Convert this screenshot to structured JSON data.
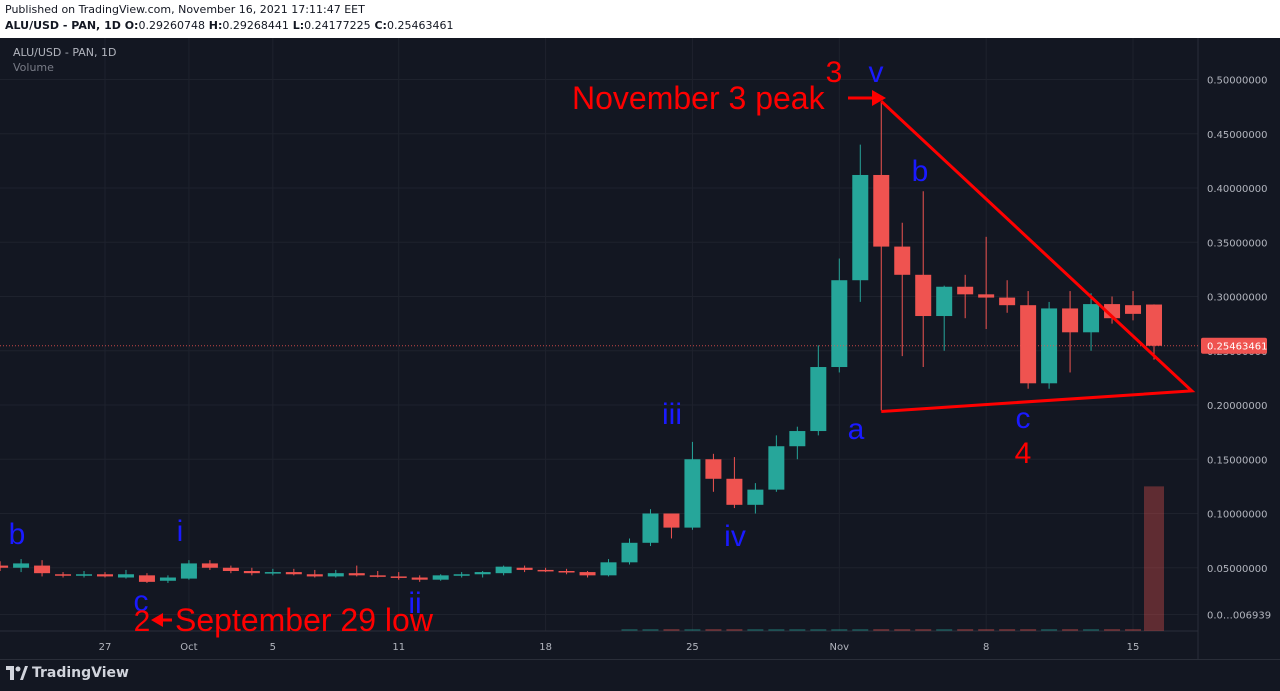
{
  "header": {
    "published": "Published on TradingView.com, November 16, 2021 17:11:47 EET",
    "symbol_line": "ALU/USD - PAN, 1D",
    "ohlc": {
      "o_label": "O:",
      "o": "0.29260748",
      "h_label": "H:",
      "h": "0.29268441",
      "l_label": "L:",
      "l": "0.24177225",
      "c_label": "C:",
      "c": "0.25463461"
    }
  },
  "legend": {
    "symbol": "ALU/USD - PAN, 1D",
    "volume": "Volume"
  },
  "footer": {
    "brand": "TradingView"
  },
  "colors": {
    "up": "#26a69a",
    "down": "#ef5350",
    "annotation_red": "#ff0000",
    "annotation_blue": "#1a1aff",
    "background": "#131722",
    "grid": "#1e222d",
    "axis_text": "#b2b5be"
  },
  "chart_data": {
    "type": "candlestick",
    "ylim": [
      0,
      0.53
    ],
    "y_ticks": [
      {
        "value": 0.5,
        "label": "0.50000000"
      },
      {
        "value": 0.45,
        "label": "0.45000000"
      },
      {
        "value": 0.4,
        "label": "0.40000000"
      },
      {
        "value": 0.35,
        "label": "0.35000000"
      },
      {
        "value": 0.3,
        "label": "0.30000000"
      },
      {
        "value": 0.25,
        "label": "0.25000000"
      },
      {
        "value": 0.2,
        "label": "0.20000000"
      },
      {
        "value": 0.15,
        "label": "0.15000000"
      },
      {
        "value": 0.1,
        "label": "0.10000000"
      },
      {
        "value": 0.05,
        "label": "0.05000000"
      },
      {
        "value": 0.006939,
        "label": "0.0…006939"
      }
    ],
    "x_ticks": [
      {
        "day": 27,
        "label": "27"
      },
      {
        "day": 31,
        "label": "Oct"
      },
      {
        "day": 35,
        "label": "5"
      },
      {
        "day": 41,
        "label": "11"
      },
      {
        "day": 48,
        "label": "18"
      },
      {
        "day": 55,
        "label": "25"
      },
      {
        "day": 62,
        "label": "Nov"
      },
      {
        "day": 69,
        "label": "8"
      },
      {
        "day": 76,
        "label": "15"
      }
    ],
    "last_price": {
      "value": 0.25463461,
      "label": "0.25463461"
    },
    "candles": [
      {
        "day": 22,
        "o": 0.052,
        "h": 0.056,
        "l": 0.047,
        "c": 0.05
      },
      {
        "day": 23,
        "o": 0.05,
        "h": 0.058,
        "l": 0.046,
        "c": 0.054
      },
      {
        "day": 24,
        "o": 0.052,
        "h": 0.057,
        "l": 0.042,
        "c": 0.045
      },
      {
        "day": 25,
        "o": 0.044,
        "h": 0.046,
        "l": 0.041,
        "c": 0.043
      },
      {
        "day": 26,
        "o": 0.043,
        "h": 0.047,
        "l": 0.041,
        "c": 0.044
      },
      {
        "day": 27,
        "o": 0.044,
        "h": 0.046,
        "l": 0.041,
        "c": 0.042
      },
      {
        "day": 28,
        "o": 0.041,
        "h": 0.048,
        "l": 0.04,
        "c": 0.044
      },
      {
        "day": 29,
        "o": 0.043,
        "h": 0.045,
        "l": 0.036,
        "c": 0.037
      },
      {
        "day": 30,
        "o": 0.038,
        "h": 0.043,
        "l": 0.036,
        "c": 0.041
      },
      {
        "day": 31,
        "o": 0.04,
        "h": 0.057,
        "l": 0.039,
        "c": 0.054
      },
      {
        "day": 32,
        "o": 0.054,
        "h": 0.057,
        "l": 0.048,
        "c": 0.05
      },
      {
        "day": 33,
        "o": 0.05,
        "h": 0.052,
        "l": 0.045,
        "c": 0.047
      },
      {
        "day": 34,
        "o": 0.047,
        "h": 0.05,
        "l": 0.043,
        "c": 0.045
      },
      {
        "day": 35,
        "o": 0.045,
        "h": 0.049,
        "l": 0.043,
        "c": 0.046
      },
      {
        "day": 36,
        "o": 0.046,
        "h": 0.049,
        "l": 0.043,
        "c": 0.044
      },
      {
        "day": 37,
        "o": 0.044,
        "h": 0.048,
        "l": 0.041,
        "c": 0.042
      },
      {
        "day": 38,
        "o": 0.042,
        "h": 0.048,
        "l": 0.041,
        "c": 0.045
      },
      {
        "day": 39,
        "o": 0.045,
        "h": 0.052,
        "l": 0.042,
        "c": 0.043
      },
      {
        "day": 40,
        "o": 0.043,
        "h": 0.047,
        "l": 0.041,
        "c": 0.042
      },
      {
        "day": 41,
        "o": 0.042,
        "h": 0.046,
        "l": 0.039,
        "c": 0.041
      },
      {
        "day": 42,
        "o": 0.041,
        "h": 0.043,
        "l": 0.037,
        "c": 0.039
      },
      {
        "day": 43,
        "o": 0.039,
        "h": 0.044,
        "l": 0.038,
        "c": 0.043
      },
      {
        "day": 44,
        "o": 0.043,
        "h": 0.046,
        "l": 0.041,
        "c": 0.044
      },
      {
        "day": 45,
        "o": 0.044,
        "h": 0.047,
        "l": 0.041,
        "c": 0.046
      },
      {
        "day": 46,
        "o": 0.045,
        "h": 0.052,
        "l": 0.043,
        "c": 0.051
      },
      {
        "day": 47,
        "o": 0.05,
        "h": 0.052,
        "l": 0.046,
        "c": 0.048
      },
      {
        "day": 48,
        "o": 0.048,
        "h": 0.05,
        "l": 0.046,
        "c": 0.047
      },
      {
        "day": 49,
        "o": 0.047,
        "h": 0.049,
        "l": 0.044,
        "c": 0.046
      },
      {
        "day": 50,
        "o": 0.046,
        "h": 0.047,
        "l": 0.041,
        "c": 0.043
      },
      {
        "day": 51,
        "o": 0.043,
        "h": 0.058,
        "l": 0.042,
        "c": 0.055
      },
      {
        "day": 52,
        "o": 0.055,
        "h": 0.077,
        "l": 0.053,
        "c": 0.073
      },
      {
        "day": 53,
        "o": 0.073,
        "h": 0.104,
        "l": 0.07,
        "c": 0.1
      },
      {
        "day": 54,
        "o": 0.1,
        "h": 0.1,
        "l": 0.077,
        "c": 0.087
      },
      {
        "day": 55,
        "o": 0.087,
        "h": 0.166,
        "l": 0.085,
        "c": 0.15
      },
      {
        "day": 56,
        "o": 0.15,
        "h": 0.155,
        "l": 0.12,
        "c": 0.132
      },
      {
        "day": 57,
        "o": 0.132,
        "h": 0.152,
        "l": 0.105,
        "c": 0.108
      },
      {
        "day": 58,
        "o": 0.108,
        "h": 0.128,
        "l": 0.1,
        "c": 0.122
      },
      {
        "day": 59,
        "o": 0.122,
        "h": 0.172,
        "l": 0.12,
        "c": 0.162
      },
      {
        "day": 60,
        "o": 0.162,
        "h": 0.18,
        "l": 0.15,
        "c": 0.176
      },
      {
        "day": 61,
        "o": 0.176,
        "h": 0.255,
        "l": 0.172,
        "c": 0.235
      },
      {
        "day": 62,
        "o": 0.235,
        "h": 0.335,
        "l": 0.23,
        "c": 0.315
      },
      {
        "day": 63,
        "o": 0.315,
        "h": 0.44,
        "l": 0.295,
        "c": 0.412
      },
      {
        "day": 64,
        "o": 0.412,
        "h": 0.48,
        "l": 0.195,
        "c": 0.346
      },
      {
        "day": 65,
        "o": 0.346,
        "h": 0.368,
        "l": 0.245,
        "c": 0.32
      },
      {
        "day": 66,
        "o": 0.32,
        "h": 0.397,
        "l": 0.235,
        "c": 0.282
      },
      {
        "day": 67,
        "o": 0.282,
        "h": 0.31,
        "l": 0.25,
        "c": 0.309
      },
      {
        "day": 68,
        "o": 0.309,
        "h": 0.32,
        "l": 0.28,
        "c": 0.302
      },
      {
        "day": 69,
        "o": 0.302,
        "h": 0.355,
        "l": 0.27,
        "c": 0.299
      },
      {
        "day": 70,
        "o": 0.299,
        "h": 0.315,
        "l": 0.285,
        "c": 0.292
      },
      {
        "day": 71,
        "o": 0.292,
        "h": 0.305,
        "l": 0.215,
        "c": 0.22
      },
      {
        "day": 72,
        "o": 0.22,
        "h": 0.295,
        "l": 0.215,
        "c": 0.289
      },
      {
        "day": 73,
        "o": 0.289,
        "h": 0.305,
        "l": 0.23,
        "c": 0.267
      },
      {
        "day": 74,
        "o": 0.267,
        "h": 0.303,
        "l": 0.25,
        "c": 0.293
      },
      {
        "day": 75,
        "o": 0.293,
        "h": 0.3,
        "l": 0.275,
        "c": 0.28
      },
      {
        "day": 76,
        "o": 0.292,
        "h": 0.305,
        "l": 0.278,
        "c": 0.284
      },
      {
        "day": 77,
        "o": 0.2926,
        "h": 0.2927,
        "l": 0.2418,
        "c": 0.2546
      }
    ],
    "volume_bar": {
      "day": 77,
      "value": 0.125
    },
    "annotations_text": [
      {
        "id": "wave-3-label",
        "text": "3"
      },
      {
        "id": "wave-v-label",
        "text": "v"
      },
      {
        "id": "nov3-peak-label",
        "text": "November 3 peak"
      },
      {
        "id": "wave-b-top-label",
        "text": "b"
      },
      {
        "id": "wave-iii-label",
        "text": "iii"
      },
      {
        "id": "wave-a-label",
        "text": "a"
      },
      {
        "id": "wave-c-right-label",
        "text": "c"
      },
      {
        "id": "wave-4-label",
        "text": "4"
      },
      {
        "id": "wave-iv-label",
        "text": "iv"
      },
      {
        "id": "wave-b-left-label",
        "text": "b"
      },
      {
        "id": "wave-i-label",
        "text": "i"
      },
      {
        "id": "wave-c-left-label",
        "text": "c"
      },
      {
        "id": "wave-2-label",
        "text": "2"
      },
      {
        "id": "sep29-low-label",
        "text": "September 29 low"
      },
      {
        "id": "wave-ii-label",
        "text": "ii"
      }
    ],
    "triangle": {
      "apex": {
        "day": 64,
        "price": 0.48
      },
      "right": {
        "day": 78.8,
        "price": 0.213
      },
      "left": {
        "day": 64,
        "price": 0.194
      }
    }
  }
}
